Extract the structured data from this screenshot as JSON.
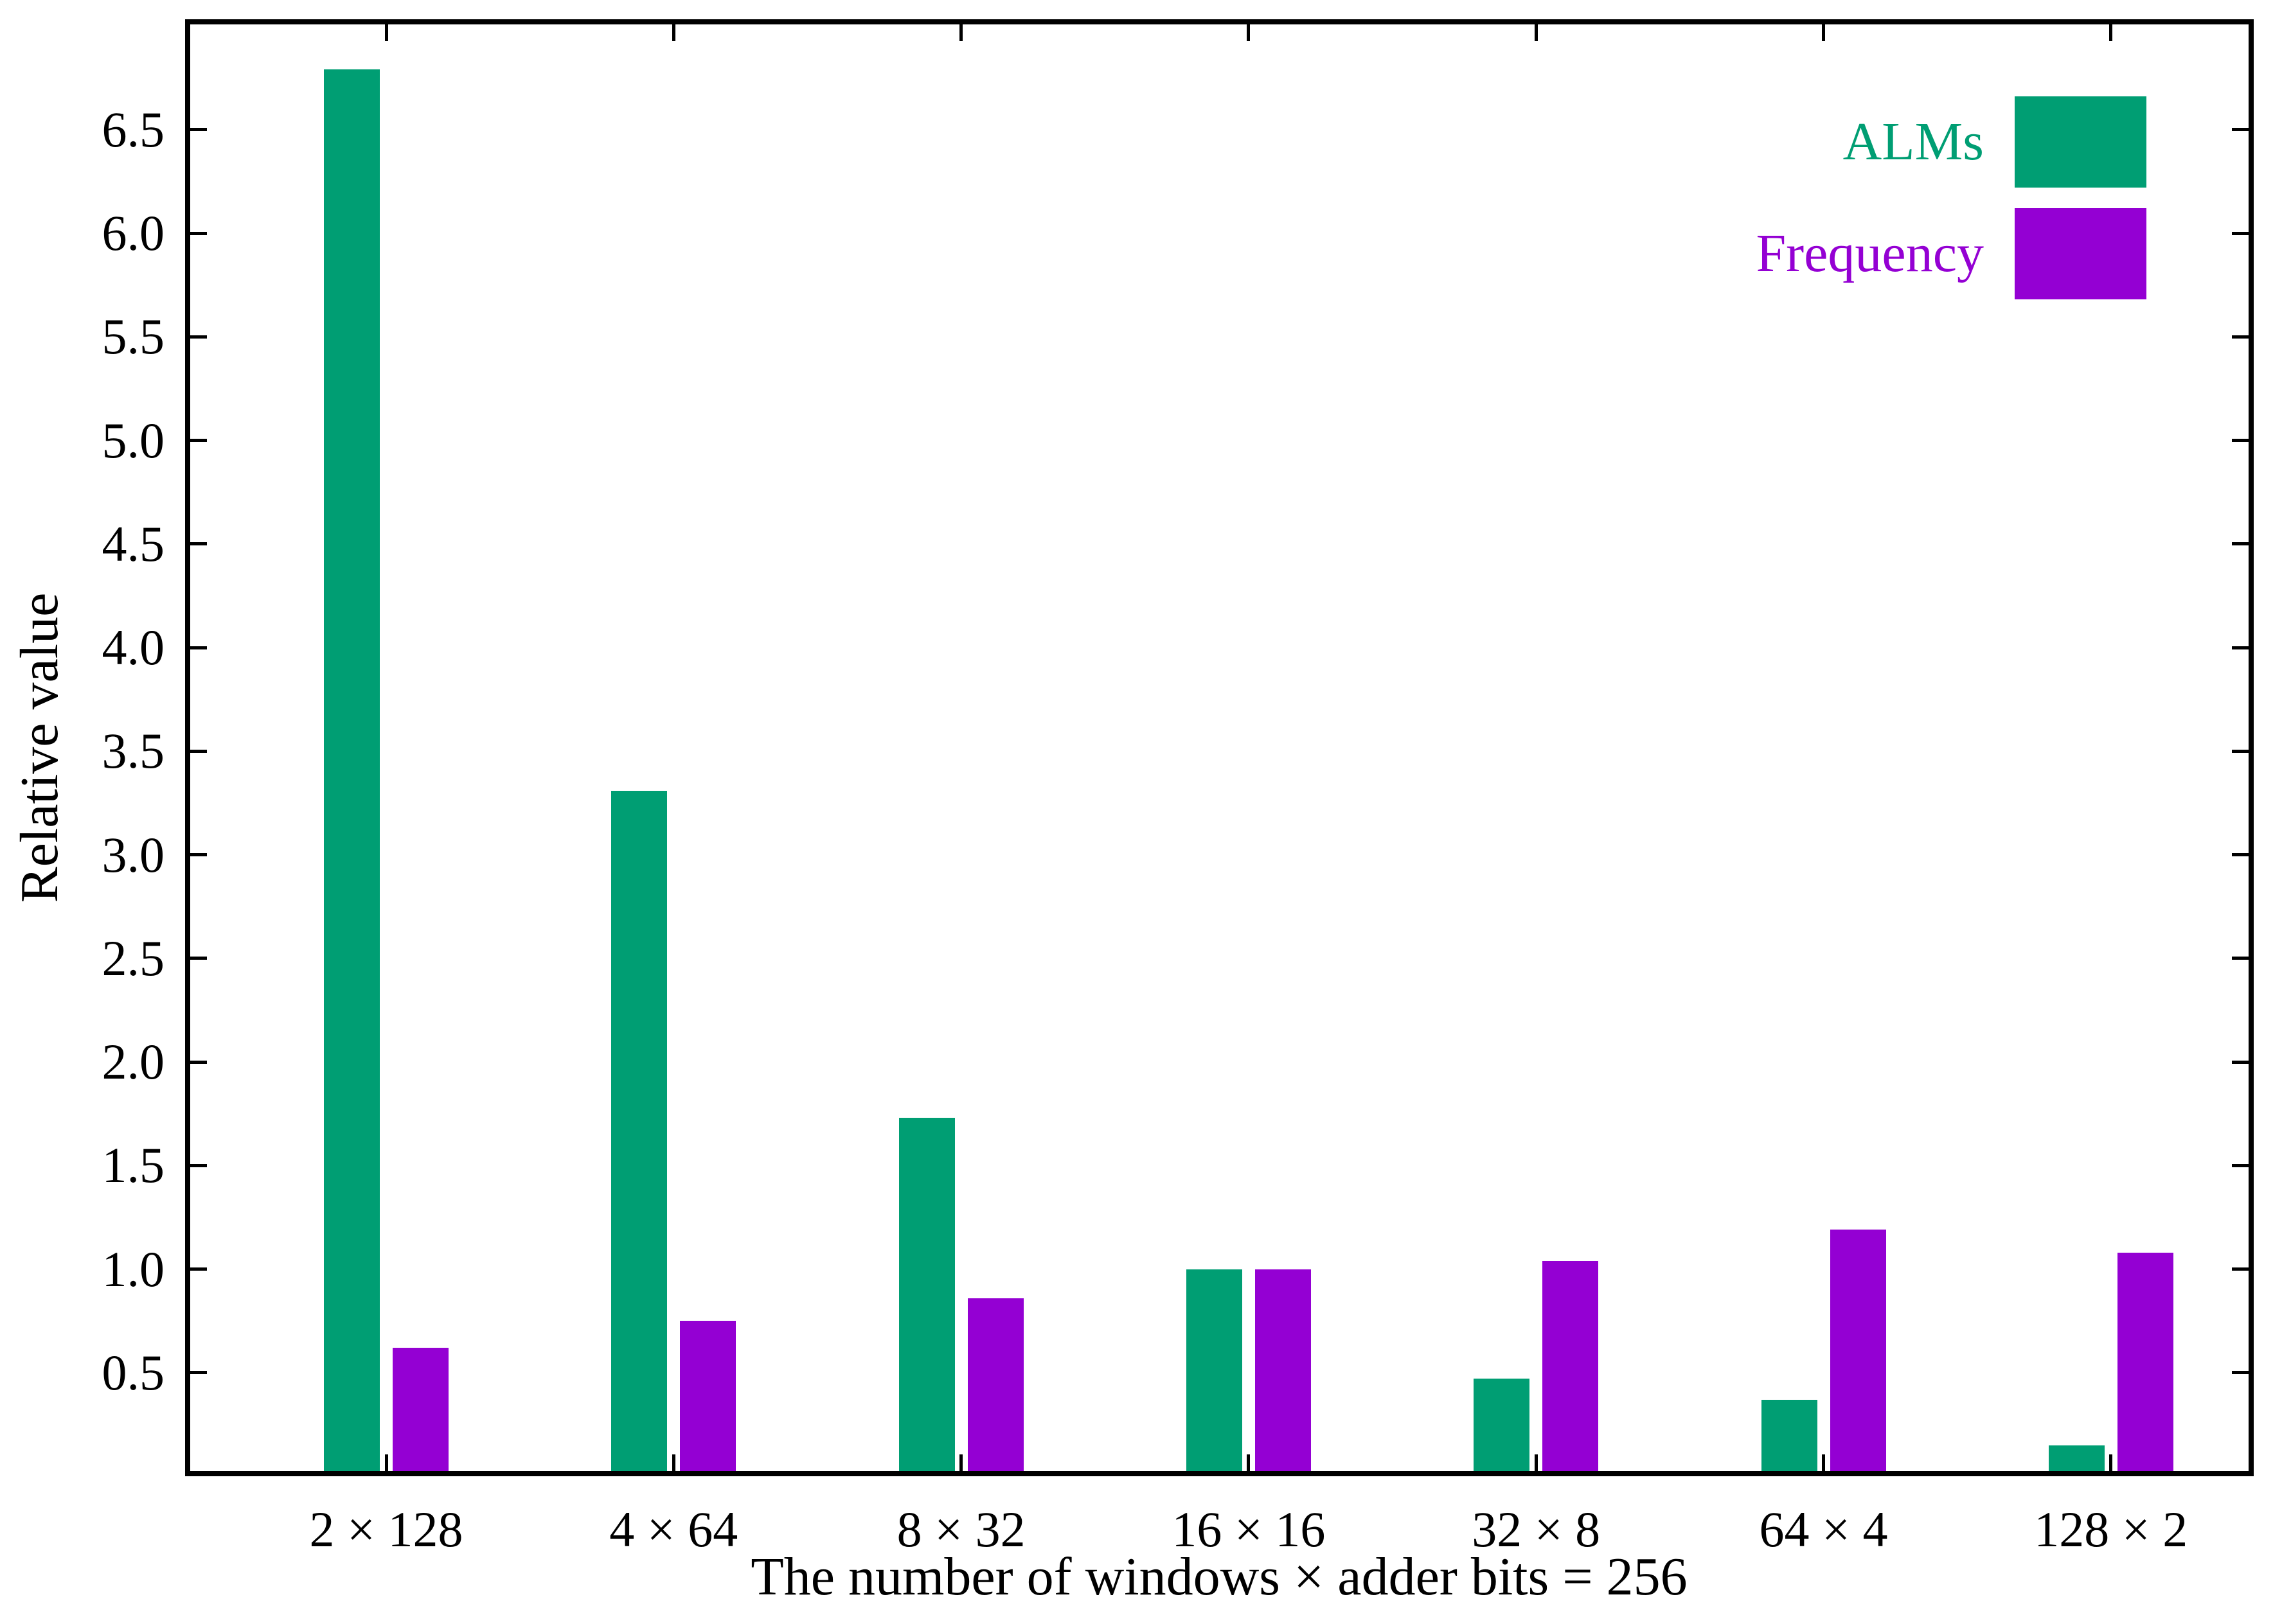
{
  "chart_data": {
    "type": "bar",
    "title": "",
    "xlabel": "The number of windows × adder bits = 256",
    "ylabel": "Relative value",
    "categories": [
      "2 × 128",
      "4 × 64",
      "8 × 32",
      "16 × 16",
      "32 × 8",
      "64 × 4",
      "128 × 2"
    ],
    "series": [
      {
        "name": "ALMs",
        "color": "#009e73",
        "values": [
          6.79,
          3.31,
          1.73,
          1.0,
          0.47,
          0.37,
          0.15
        ]
      },
      {
        "name": "Frequency",
        "color": "#9400d3",
        "values": [
          0.62,
          0.75,
          0.86,
          1.0,
          1.04,
          1.19,
          1.08
        ]
      }
    ],
    "ylim": [
      0,
      7.03
    ],
    "ytick_labels": [
      "0.5",
      "1.0",
      "1.5",
      "2.0",
      "2.5",
      "3.0",
      "3.5",
      "4.0",
      "4.5",
      "5.0",
      "5.5",
      "6.0",
      "6.5"
    ],
    "grid": false,
    "legend_position": "top-right",
    "axis_color": "#000000",
    "background": "#ffffff"
  }
}
